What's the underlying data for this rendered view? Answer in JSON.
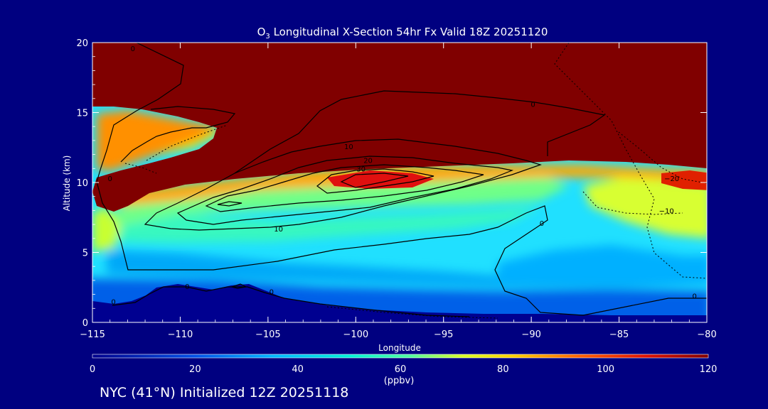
{
  "chart_data": {
    "type": "heatmap",
    "title": "O3 Longitudinal X-Section 54hr  Fx Valid 18Z 20251120",
    "title_parts": {
      "pre": "O",
      "sub": "3",
      "post": " Longitudinal X-Section 54hr  Fx Valid 18Z 20251120"
    },
    "xlabel": "Longitude",
    "ylabel": "Altitude (km)",
    "xlim": [
      -115,
      -80
    ],
    "ylim": [
      0,
      20
    ],
    "x_ticks": [
      -115,
      -110,
      -105,
      -100,
      -95,
      -90,
      -85,
      -80
    ],
    "x_tick_labels": [
      "−115",
      "−110",
      "−105",
      "−100",
      "−95",
      "−90",
      "−85",
      "−80"
    ],
    "y_ticks": [
      0,
      5,
      10,
      15,
      20
    ],
    "y_tick_labels": [
      "0",
      "5",
      "10",
      "15",
      "20"
    ],
    "colorbar": {
      "min": 0,
      "max": 120,
      "ticks": [
        0,
        20,
        40,
        60,
        80,
        100,
        120
      ],
      "tick_labels": [
        "0",
        "20",
        "40",
        "60",
        "80",
        "100",
        "120"
      ],
      "units": "(ppbv)",
      "stops": [
        {
          "v": 0,
          "c": "#00008c"
        },
        {
          "v": 20,
          "c": "#0050e6"
        },
        {
          "v": 35,
          "c": "#00b4ff"
        },
        {
          "v": 50,
          "c": "#00f0d8"
        },
        {
          "v": 62,
          "c": "#50ffa0"
        },
        {
          "v": 72,
          "c": "#d8ff28"
        },
        {
          "v": 82,
          "c": "#ffd000"
        },
        {
          "v": 95,
          "c": "#ff6000"
        },
        {
          "v": 108,
          "c": "#dc1000"
        },
        {
          "v": 120,
          "c": "#800000"
        }
      ]
    },
    "contour_labels": [
      {
        "text": "0",
        "lon": -112.7,
        "alt": 19.6
      },
      {
        "text": "0",
        "lon": -89.9,
        "alt": 15.6
      },
      {
        "text": "0",
        "lon": -114.0,
        "alt": 10.3
      },
      {
        "text": "0",
        "lon": -109.6,
        "alt": 2.6
      },
      {
        "text": "0",
        "lon": -104.8,
        "alt": 2.2
      },
      {
        "text": "0",
        "lon": -113.8,
        "alt": 1.5
      },
      {
        "text": "0",
        "lon": -89.4,
        "alt": 7.1
      },
      {
        "text": "0",
        "lon": -80.7,
        "alt": 1.9
      },
      {
        "text": "10",
        "lon": -100.4,
        "alt": 12.6
      },
      {
        "text": "10",
        "lon": -104.4,
        "alt": 6.7
      },
      {
        "text": "20",
        "lon": -99.3,
        "alt": 11.6
      },
      {
        "text": "30",
        "lon": -99.7,
        "alt": 11.0
      },
      {
        "text": "−20",
        "lon": -82.0,
        "alt": 10.3
      },
      {
        "text": "−10",
        "lon": -82.3,
        "alt": 8.0
      }
    ]
  },
  "footer": {
    "text": "NYC (41°N) Initialized 12Z 20251118"
  }
}
